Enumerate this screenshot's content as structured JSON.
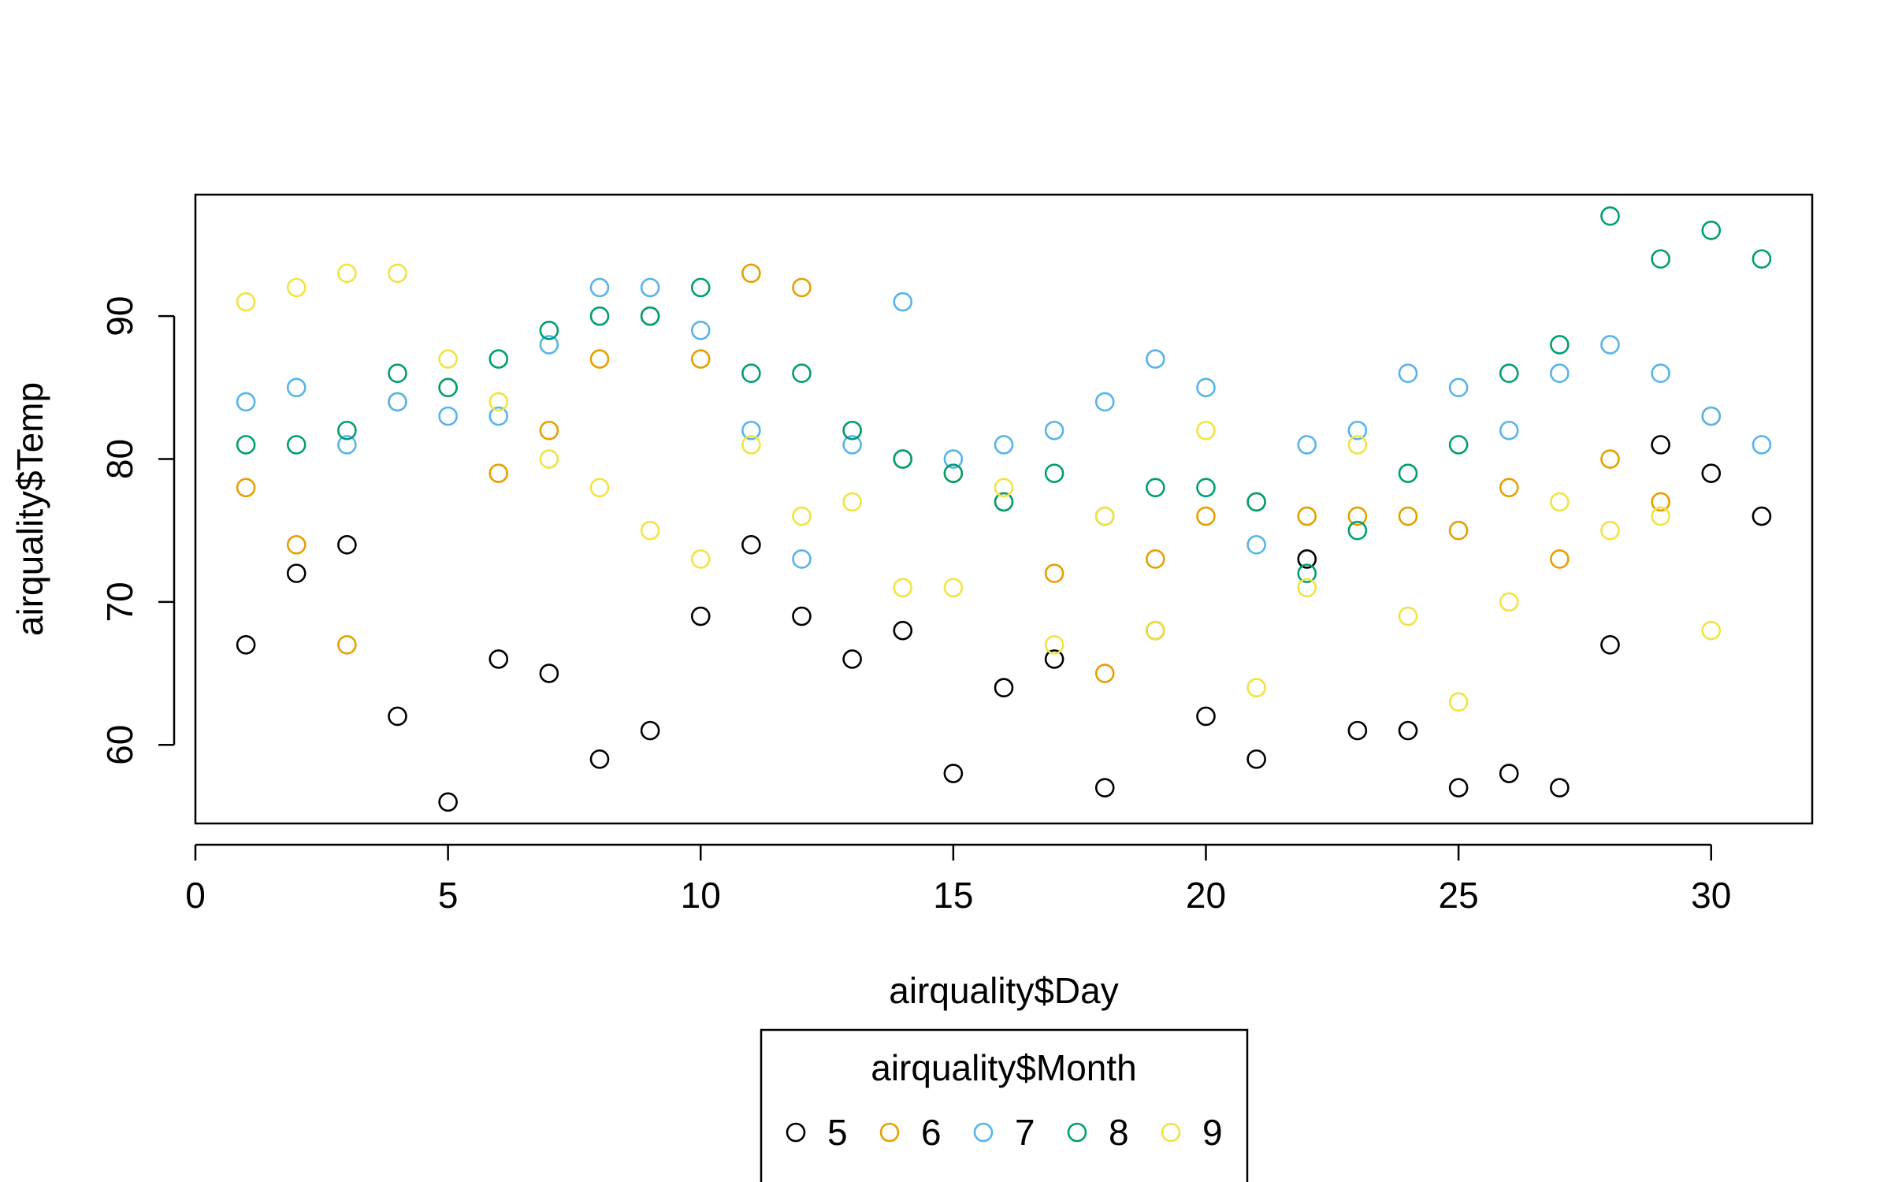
{
  "chart_data": {
    "type": "scatter",
    "title": "",
    "xlabel": "airquality$Day",
    "ylabel": "airquality$Temp",
    "xlim": [
      0,
      32
    ],
    "ylim": [
      54.5,
      98.5
    ],
    "x_ticks": [
      0,
      5,
      10,
      15,
      20,
      25,
      30
    ],
    "y_ticks": [
      60,
      70,
      80,
      90
    ],
    "grid": false,
    "marker": "open-circle",
    "legend": {
      "title": "airquality$Month",
      "placement": "bottom-center",
      "entries": [
        "5",
        "6",
        "7",
        "8",
        "9"
      ]
    },
    "series": [
      {
        "name": "5",
        "color": "#000000",
        "points": [
          [
            1,
            67
          ],
          [
            2,
            72
          ],
          [
            3,
            74
          ],
          [
            4,
            62
          ],
          [
            5,
            56
          ],
          [
            6,
            66
          ],
          [
            7,
            65
          ],
          [
            8,
            59
          ],
          [
            9,
            61
          ],
          [
            10,
            69
          ],
          [
            11,
            74
          ],
          [
            12,
            69
          ],
          [
            13,
            66
          ],
          [
            14,
            68
          ],
          [
            15,
            58
          ],
          [
            16,
            64
          ],
          [
            17,
            66
          ],
          [
            18,
            57
          ],
          [
            19,
            68
          ],
          [
            20,
            62
          ],
          [
            21,
            59
          ],
          [
            22,
            73
          ],
          [
            23,
            61
          ],
          [
            24,
            61
          ],
          [
            25,
            57
          ],
          [
            26,
            58
          ],
          [
            27,
            57
          ],
          [
            28,
            67
          ],
          [
            29,
            81
          ],
          [
            30,
            79
          ],
          [
            31,
            76
          ]
        ]
      },
      {
        "name": "6",
        "color": "#E69F00",
        "points": [
          [
            1,
            78
          ],
          [
            2,
            74
          ],
          [
            3,
            67
          ],
          [
            4,
            84
          ],
          [
            5,
            85
          ],
          [
            6,
            79
          ],
          [
            7,
            82
          ],
          [
            8,
            87
          ],
          [
            9,
            90
          ],
          [
            10,
            87
          ],
          [
            11,
            93
          ],
          [
            12,
            92
          ],
          [
            13,
            82
          ],
          [
            14,
            80
          ],
          [
            15,
            79
          ],
          [
            16,
            77
          ],
          [
            17,
            72
          ],
          [
            18,
            65
          ],
          [
            19,
            73
          ],
          [
            20,
            76
          ],
          [
            21,
            77
          ],
          [
            22,
            76
          ],
          [
            23,
            76
          ],
          [
            24,
            76
          ],
          [
            25,
            75
          ],
          [
            26,
            78
          ],
          [
            27,
            73
          ],
          [
            28,
            80
          ],
          [
            29,
            77
          ],
          [
            30,
            83
          ]
        ]
      },
      {
        "name": "7",
        "color": "#56B4E9",
        "points": [
          [
            1,
            84
          ],
          [
            2,
            85
          ],
          [
            3,
            81
          ],
          [
            4,
            84
          ],
          [
            5,
            83
          ],
          [
            6,
            83
          ],
          [
            7,
            88
          ],
          [
            8,
            92
          ],
          [
            9,
            92
          ],
          [
            10,
            89
          ],
          [
            11,
            82
          ],
          [
            12,
            73
          ],
          [
            13,
            81
          ],
          [
            14,
            91
          ],
          [
            15,
            80
          ],
          [
            16,
            81
          ],
          [
            17,
            82
          ],
          [
            18,
            84
          ],
          [
            19,
            87
          ],
          [
            20,
            85
          ],
          [
            21,
            74
          ],
          [
            22,
            81
          ],
          [
            23,
            82
          ],
          [
            24,
            86
          ],
          [
            25,
            85
          ],
          [
            26,
            82
          ],
          [
            27,
            86
          ],
          [
            28,
            88
          ],
          [
            29,
            86
          ],
          [
            30,
            83
          ],
          [
            31,
            81
          ]
        ]
      },
      {
        "name": "8",
        "color": "#009E73",
        "points": [
          [
            1,
            81
          ],
          [
            2,
            81
          ],
          [
            3,
            82
          ],
          [
            4,
            86
          ],
          [
            5,
            85
          ],
          [
            6,
            87
          ],
          [
            7,
            89
          ],
          [
            8,
            90
          ],
          [
            9,
            90
          ],
          [
            10,
            92
          ],
          [
            11,
            86
          ],
          [
            12,
            86
          ],
          [
            13,
            82
          ],
          [
            14,
            80
          ],
          [
            15,
            79
          ],
          [
            16,
            77
          ],
          [
            17,
            79
          ],
          [
            18,
            76
          ],
          [
            19,
            78
          ],
          [
            20,
            78
          ],
          [
            21,
            77
          ],
          [
            22,
            72
          ],
          [
            23,
            75
          ],
          [
            24,
            79
          ],
          [
            25,
            81
          ],
          [
            26,
            86
          ],
          [
            27,
            88
          ],
          [
            28,
            97
          ],
          [
            29,
            94
          ],
          [
            30,
            96
          ],
          [
            31,
            94
          ]
        ]
      },
      {
        "name": "9",
        "color": "#F0E442",
        "points": [
          [
            1,
            91
          ],
          [
            2,
            92
          ],
          [
            3,
            93
          ],
          [
            4,
            93
          ],
          [
            5,
            87
          ],
          [
            6,
            84
          ],
          [
            7,
            80
          ],
          [
            8,
            78
          ],
          [
            9,
            75
          ],
          [
            10,
            73
          ],
          [
            11,
            81
          ],
          [
            12,
            76
          ],
          [
            13,
            77
          ],
          [
            14,
            71
          ],
          [
            15,
            71
          ],
          [
            16,
            78
          ],
          [
            17,
            67
          ],
          [
            18,
            76
          ],
          [
            19,
            68
          ],
          [
            20,
            82
          ],
          [
            21,
            64
          ],
          [
            22,
            71
          ],
          [
            23,
            81
          ],
          [
            24,
            69
          ],
          [
            25,
            63
          ],
          [
            26,
            70
          ],
          [
            27,
            77
          ],
          [
            28,
            75
          ],
          [
            29,
            76
          ],
          [
            30,
            68
          ]
        ]
      }
    ]
  }
}
